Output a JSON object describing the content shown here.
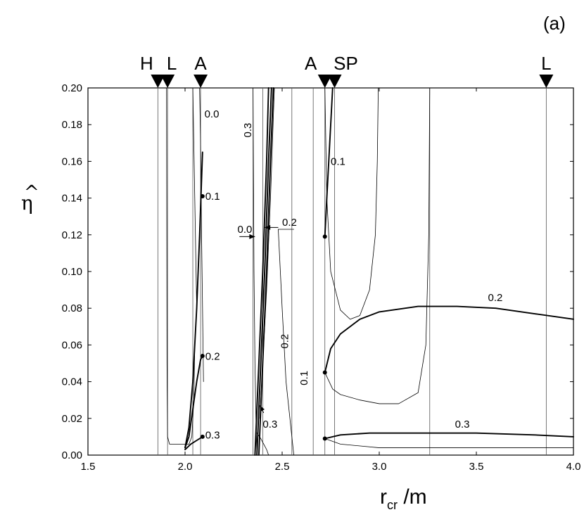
{
  "chart_data": {
    "type": "line",
    "panel_label": "(a)",
    "xlabel": "r",
    "xlabel_sub": "cr",
    "xlabel_suffix": " /m",
    "ylabel": "η",
    "ylabel_accent": "^",
    "xlim": [
      1.5,
      4.0
    ],
    "ylim": [
      0.0,
      0.2
    ],
    "x_ticks": [
      1.5,
      2.0,
      2.5,
      3.0,
      3.5,
      4.0
    ],
    "x_tick_labels": [
      "1.5",
      "2.0",
      "2.5",
      "3.0",
      "3.5",
      "4.0"
    ],
    "y_ticks": [
      0.0,
      0.02,
      0.04,
      0.06,
      0.08,
      0.1,
      0.12,
      0.14,
      0.16,
      0.18,
      0.2
    ],
    "y_tick_labels": [
      "0.00",
      "0.02",
      "0.04",
      "0.06",
      "0.08",
      "0.10",
      "0.12",
      "0.14",
      "0.16",
      "0.18",
      "0.20"
    ],
    "grid": false,
    "markers": [
      {
        "label": "H",
        "x": 1.86
      },
      {
        "label": "L",
        "x": 1.91
      },
      {
        "label": "A",
        "x": 2.08
      },
      {
        "label": "A",
        "x": 2.72
      },
      {
        "label": "SP",
        "x": 2.77
      },
      {
        "label": "L",
        "x": 3.86
      }
    ],
    "vertical_lines": [
      1.86,
      1.91,
      2.04,
      2.08,
      2.35,
      2.4,
      2.55,
      2.66,
      2.72,
      2.77,
      3.26,
      3.86
    ],
    "points": [
      {
        "x": 2.09,
        "y": 0.141
      },
      {
        "x": 2.09,
        "y": 0.054
      },
      {
        "x": 2.09,
        "y": 0.01
      },
      {
        "x": 2.72,
        "y": 0.119
      },
      {
        "x": 2.72,
        "y": 0.045
      },
      {
        "x": 2.72,
        "y": 0.009
      }
    ],
    "series": [
      {
        "weight": "thin",
        "x": [
          1.905,
          1.907,
          1.91,
          1.92,
          1.94,
          1.97,
          2.0,
          2.02,
          2.035,
          2.045,
          2.05
        ],
        "y": [
          0.2,
          0.05,
          0.01,
          0.006,
          0.006,
          0.006,
          0.006,
          0.006,
          0.01,
          0.03,
          0.06
        ]
      },
      {
        "weight": "thin",
        "x": [
          2.04,
          2.045,
          2.05,
          2.055,
          2.06
        ],
        "y": [
          0.2,
          0.17,
          0.14,
          0.11,
          0.08
        ]
      },
      {
        "weight": "thin",
        "x": [
          2.075,
          2.08,
          2.085,
          2.09,
          2.095
        ],
        "y": [
          0.2,
          0.17,
          0.12,
          0.08,
          0.04
        ]
      },
      {
        "weight": "thick",
        "x": [
          2.0,
          2.02,
          2.04,
          2.06,
          2.075,
          2.09
        ],
        "y": [
          0.004,
          0.015,
          0.04,
          0.08,
          0.12,
          0.165
        ]
      },
      {
        "weight": "thick",
        "x": [
          2.0,
          2.02,
          2.04,
          2.06,
          2.08,
          2.09
        ],
        "y": [
          0.004,
          0.01,
          0.025,
          0.04,
          0.052,
          0.054
        ]
      },
      {
        "weight": "thick",
        "x": [
          2.0,
          2.03,
          2.06,
          2.09
        ],
        "y": [
          0.003,
          0.006,
          0.008,
          0.01
        ]
      },
      {
        "weight": "thin",
        "x": [
          2.35,
          2.352,
          2.355,
          2.36,
          2.365,
          2.37
        ],
        "y": [
          0.2,
          0.16,
          0.1,
          0.05,
          0.02,
          0.0
        ]
      },
      {
        "weight": "thick",
        "x": [
          2.36,
          2.38,
          2.4,
          2.42,
          2.43
        ],
        "y": [
          0.0,
          0.05,
          0.1,
          0.16,
          0.2
        ]
      },
      {
        "weight": "thick",
        "x": [
          2.37,
          2.39,
          2.41,
          2.43,
          2.445
        ],
        "y": [
          0.0,
          0.05,
          0.1,
          0.16,
          0.2
        ]
      },
      {
        "weight": "thick",
        "x": [
          2.38,
          2.4,
          2.42,
          2.44,
          2.455
        ],
        "y": [
          0.0,
          0.05,
          0.1,
          0.16,
          0.2
        ]
      },
      {
        "weight": "thin",
        "x": [
          2.385,
          2.4,
          2.42,
          2.44,
          2.46
        ],
        "y": [
          0.02,
          0.05,
          0.09,
          0.14,
          0.2
        ]
      },
      {
        "weight": "thin",
        "x": [
          2.37,
          2.39,
          2.41,
          2.42,
          2.43
        ],
        "y": [
          0.012,
          0.009,
          0.005,
          0.003,
          0.0
        ]
      },
      {
        "weight": "thin",
        "x": [
          2.48,
          2.5,
          2.52,
          2.54,
          2.55,
          2.56
        ],
        "y": [
          0.123,
          0.08,
          0.04,
          0.02,
          0.01,
          0.0
        ]
      },
      {
        "weight": "thin",
        "x": [
          2.48,
          2.52,
          2.56
        ],
        "y": [
          0.123,
          0.123,
          0.123
        ]
      },
      {
        "weight": "thick",
        "x": [
          2.72,
          2.73,
          2.74,
          2.75,
          2.76
        ],
        "y": [
          0.119,
          0.14,
          0.16,
          0.18,
          0.2
        ]
      },
      {
        "weight": "thin",
        "x": [
          2.72,
          2.73,
          2.75,
          2.8,
          2.85,
          2.9,
          2.95,
          2.98,
          2.99,
          2.995
        ],
        "y": [
          0.2,
          0.14,
          0.1,
          0.079,
          0.074,
          0.076,
          0.09,
          0.12,
          0.16,
          0.2
        ]
      },
      {
        "weight": "thick",
        "x": [
          2.72,
          2.75,
          2.8,
          2.9,
          3.0,
          3.2,
          3.4,
          3.6,
          3.8,
          4.0
        ],
        "y": [
          0.045,
          0.058,
          0.066,
          0.074,
          0.078,
          0.081,
          0.081,
          0.08,
          0.077,
          0.074
        ]
      },
      {
        "weight": "thin",
        "x": [
          2.72,
          2.76,
          2.8,
          2.9,
          3.0,
          3.1,
          3.2,
          3.24,
          3.255,
          3.26
        ],
        "y": [
          0.045,
          0.036,
          0.033,
          0.03,
          0.028,
          0.028,
          0.034,
          0.06,
          0.12,
          0.2
        ]
      },
      {
        "weight": "thick",
        "x": [
          2.72,
          2.8,
          2.95,
          3.2,
          3.5,
          3.8,
          4.0
        ],
        "y": [
          0.009,
          0.011,
          0.012,
          0.012,
          0.012,
          0.011,
          0.01
        ]
      },
      {
        "weight": "thin",
        "x": [
          2.72,
          2.8,
          3.0,
          3.5,
          4.0
        ],
        "y": [
          0.009,
          0.006,
          0.004,
          0.004,
          0.004
        ]
      }
    ],
    "annotations": [
      {
        "text": "0.0",
        "x": 2.1,
        "y": 0.184
      },
      {
        "text": "0.3",
        "x": 2.34,
        "y": 0.173,
        "rotate": -90
      },
      {
        "text": "0.1",
        "x": 2.104,
        "y": 0.139
      },
      {
        "text": "0.2",
        "x": 2.104,
        "y": 0.052
      },
      {
        "text": "0.3",
        "x": 2.104,
        "y": 0.009
      },
      {
        "text": "0.0",
        "x": 2.27,
        "y": 0.121
      },
      {
        "text": "0.2",
        "x": 2.5,
        "y": 0.125
      },
      {
        "text": "0.2",
        "x": 2.53,
        "y": 0.058,
        "rotate": -90
      },
      {
        "text": "0.1",
        "x": 2.63,
        "y": 0.038,
        "rotate": -90
      },
      {
        "text": "0.3",
        "x": 2.4,
        "y": 0.015
      },
      {
        "text": "0.1",
        "x": 2.75,
        "y": 0.158
      },
      {
        "text": "0.2",
        "x": 3.56,
        "y": 0.084
      },
      {
        "text": "0.3",
        "x": 3.39,
        "y": 0.015
      }
    ],
    "arrows": [
      {
        "from": [
          2.28,
          0.119
        ],
        "to": [
          2.36,
          0.119
        ]
      },
      {
        "from": [
          2.48,
          0.124
        ],
        "to": [
          2.41,
          0.124
        ]
      },
      {
        "from": [
          2.405,
          0.023
        ],
        "to": [
          2.385,
          0.027
        ]
      }
    ]
  }
}
